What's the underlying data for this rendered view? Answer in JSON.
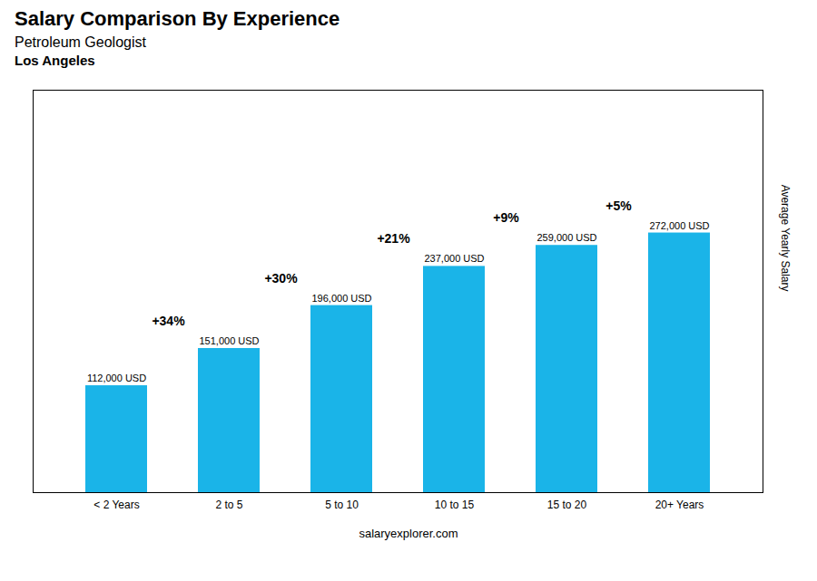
{
  "chart_data": {
    "type": "bar",
    "title": "Salary Comparison By Experience",
    "subtitle": "Petroleum Geologist",
    "city": "Los Angeles",
    "ylabel": "Average Yearly Salary",
    "caption": "salaryexplorer.com",
    "categories": [
      "< 2 Years",
      "2 to 5",
      "5 to 10",
      "10 to 15",
      "15 to 20",
      "20+ Years"
    ],
    "values": [
      112000,
      151000,
      196000,
      237000,
      259000,
      272000
    ],
    "value_labels": [
      "112,000 USD",
      "151,000 USD",
      "196,000 USD",
      "237,000 USD",
      "259,000 USD",
      "272,000 USD"
    ],
    "data_labels": true,
    "annotations": [
      "+34%",
      "+30%",
      "+21%",
      "+9%",
      "+5%"
    ],
    "color": "#1ab4e8",
    "ylim": [
      0,
      421600
    ],
    "tick_labels": "x",
    "grid": false
  }
}
